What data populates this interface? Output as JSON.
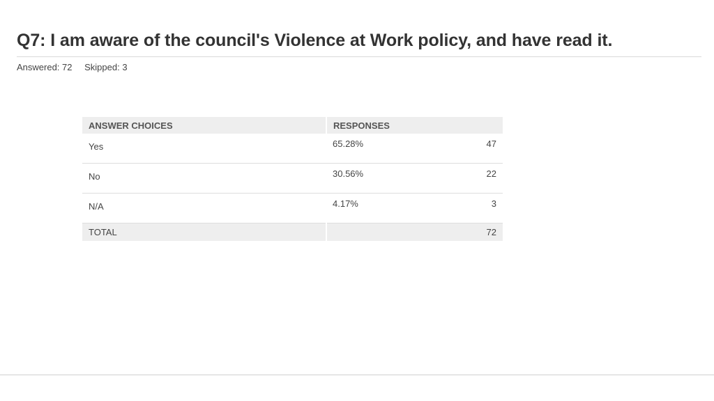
{
  "question": {
    "title": "Q7: I am aware of the council's Violence at Work policy, and have read it."
  },
  "stats": {
    "answered": "Answered: 72",
    "skipped": "Skipped: 3"
  },
  "table": {
    "headers": {
      "choices": "ANSWER CHOICES",
      "responses": "RESPONSES"
    },
    "rows": [
      {
        "choice": "Yes",
        "percent": "65.28%",
        "count": "47"
      },
      {
        "choice": "No",
        "percent": "30.56%",
        "count": "22"
      },
      {
        "choice": "N/A",
        "percent": "4.17%",
        "count": "3"
      }
    ],
    "total": {
      "label": "TOTAL",
      "count": "72"
    }
  }
}
